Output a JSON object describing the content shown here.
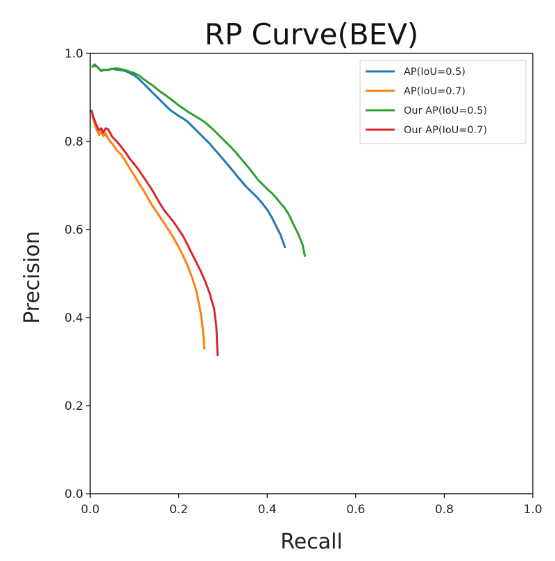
{
  "chart_data": {
    "type": "line",
    "title": "RP Curve(BEV)",
    "xlabel": "Recall",
    "ylabel": "Precision",
    "xlim": [
      0.0,
      1.0
    ],
    "ylim": [
      0.0,
      1.0
    ],
    "xticks": [
      "0.0",
      "0.2",
      "0.4",
      "0.6",
      "0.8",
      "1.0"
    ],
    "yticks": [
      "0.0",
      "0.2",
      "0.4",
      "0.6",
      "0.8",
      "1.0"
    ],
    "grid": false,
    "legend_position": "top-right",
    "series": [
      {
        "name": "AP(IoU=0.5)",
        "color": "#1f77b4",
        "points": [
          [
            0.005,
            0.97
          ],
          [
            0.01,
            0.972
          ],
          [
            0.015,
            0.97
          ],
          [
            0.02,
            0.965
          ],
          [
            0.025,
            0.96
          ],
          [
            0.03,
            0.963
          ],
          [
            0.04,
            0.962
          ],
          [
            0.05,
            0.965
          ],
          [
            0.06,
            0.963
          ],
          [
            0.07,
            0.962
          ],
          [
            0.08,
            0.96
          ],
          [
            0.09,
            0.955
          ],
          [
            0.1,
            0.95
          ],
          [
            0.11,
            0.942
          ],
          [
            0.12,
            0.932
          ],
          [
            0.13,
            0.922
          ],
          [
            0.14,
            0.912
          ],
          [
            0.15,
            0.902
          ],
          [
            0.16,
            0.892
          ],
          [
            0.17,
            0.882
          ],
          [
            0.18,
            0.872
          ],
          [
            0.19,
            0.865
          ],
          [
            0.2,
            0.858
          ],
          [
            0.21,
            0.852
          ],
          [
            0.22,
            0.845
          ],
          [
            0.23,
            0.835
          ],
          [
            0.24,
            0.825
          ],
          [
            0.25,
            0.815
          ],
          [
            0.26,
            0.805
          ],
          [
            0.27,
            0.795
          ],
          [
            0.28,
            0.783
          ],
          [
            0.29,
            0.772
          ],
          [
            0.3,
            0.76
          ],
          [
            0.31,
            0.748
          ],
          [
            0.32,
            0.736
          ],
          [
            0.33,
            0.724
          ],
          [
            0.34,
            0.712
          ],
          [
            0.35,
            0.7
          ],
          [
            0.36,
            0.69
          ],
          [
            0.37,
            0.68
          ],
          [
            0.38,
            0.67
          ],
          [
            0.39,
            0.658
          ],
          [
            0.4,
            0.645
          ],
          [
            0.41,
            0.628
          ],
          [
            0.42,
            0.608
          ],
          [
            0.43,
            0.588
          ],
          [
            0.44,
            0.56
          ]
        ]
      },
      {
        "name": "AP(IoU=0.7)",
        "color": "#ff7f0e",
        "points": [
          [
            0.003,
            0.87
          ],
          [
            0.006,
            0.855
          ],
          [
            0.01,
            0.84
          ],
          [
            0.015,
            0.825
          ],
          [
            0.02,
            0.815
          ],
          [
            0.025,
            0.822
          ],
          [
            0.03,
            0.812
          ],
          [
            0.035,
            0.818
          ],
          [
            0.04,
            0.808
          ],
          [
            0.045,
            0.8
          ],
          [
            0.05,
            0.795
          ],
          [
            0.06,
            0.78
          ],
          [
            0.07,
            0.77
          ],
          [
            0.08,
            0.755
          ],
          [
            0.09,
            0.738
          ],
          [
            0.1,
            0.722
          ],
          [
            0.11,
            0.705
          ],
          [
            0.12,
            0.69
          ],
          [
            0.13,
            0.672
          ],
          [
            0.14,
            0.655
          ],
          [
            0.15,
            0.64
          ],
          [
            0.16,
            0.625
          ],
          [
            0.17,
            0.61
          ],
          [
            0.18,
            0.595
          ],
          [
            0.19,
            0.578
          ],
          [
            0.2,
            0.56
          ],
          [
            0.21,
            0.54
          ],
          [
            0.22,
            0.518
          ],
          [
            0.23,
            0.492
          ],
          [
            0.24,
            0.46
          ],
          [
            0.25,
            0.41
          ],
          [
            0.255,
            0.37
          ],
          [
            0.258,
            0.33
          ]
        ]
      },
      {
        "name": "Our AP(IoU=0.5)",
        "color": "#2ca02c",
        "points": [
          [
            0.005,
            0.97
          ],
          [
            0.01,
            0.975
          ],
          [
            0.015,
            0.97
          ],
          [
            0.02,
            0.965
          ],
          [
            0.025,
            0.962
          ],
          [
            0.03,
            0.962
          ],
          [
            0.04,
            0.963
          ],
          [
            0.05,
            0.965
          ],
          [
            0.06,
            0.966
          ],
          [
            0.07,
            0.964
          ],
          [
            0.08,
            0.962
          ],
          [
            0.09,
            0.958
          ],
          [
            0.1,
            0.955
          ],
          [
            0.11,
            0.95
          ],
          [
            0.12,
            0.942
          ],
          [
            0.13,
            0.935
          ],
          [
            0.14,
            0.928
          ],
          [
            0.15,
            0.92
          ],
          [
            0.16,
            0.912
          ],
          [
            0.17,
            0.905
          ],
          [
            0.18,
            0.898
          ],
          [
            0.19,
            0.89
          ],
          [
            0.2,
            0.882
          ],
          [
            0.21,
            0.875
          ],
          [
            0.22,
            0.868
          ],
          [
            0.23,
            0.862
          ],
          [
            0.24,
            0.856
          ],
          [
            0.25,
            0.85
          ],
          [
            0.26,
            0.843
          ],
          [
            0.27,
            0.834
          ],
          [
            0.28,
            0.825
          ],
          [
            0.29,
            0.815
          ],
          [
            0.3,
            0.805
          ],
          [
            0.31,
            0.795
          ],
          [
            0.32,
            0.785
          ],
          [
            0.33,
            0.774
          ],
          [
            0.34,
            0.762
          ],
          [
            0.35,
            0.75
          ],
          [
            0.36,
            0.738
          ],
          [
            0.37,
            0.725
          ],
          [
            0.38,
            0.712
          ],
          [
            0.39,
            0.702
          ],
          [
            0.4,
            0.692
          ],
          [
            0.41,
            0.683
          ],
          [
            0.42,
            0.672
          ],
          [
            0.43,
            0.66
          ],
          [
            0.44,
            0.648
          ],
          [
            0.45,
            0.632
          ],
          [
            0.46,
            0.61
          ],
          [
            0.47,
            0.59
          ],
          [
            0.48,
            0.565
          ],
          [
            0.485,
            0.54
          ]
        ]
      },
      {
        "name": "Our AP(IoU=0.7)",
        "color": "#d62728",
        "points": [
          [
            0.003,
            0.87
          ],
          [
            0.006,
            0.86
          ],
          [
            0.01,
            0.848
          ],
          [
            0.015,
            0.835
          ],
          [
            0.02,
            0.825
          ],
          [
            0.025,
            0.83
          ],
          [
            0.03,
            0.82
          ],
          [
            0.035,
            0.83
          ],
          [
            0.04,
            0.828
          ],
          [
            0.045,
            0.82
          ],
          [
            0.05,
            0.81
          ],
          [
            0.06,
            0.8
          ],
          [
            0.07,
            0.788
          ],
          [
            0.08,
            0.775
          ],
          [
            0.09,
            0.76
          ],
          [
            0.1,
            0.748
          ],
          [
            0.11,
            0.735
          ],
          [
            0.12,
            0.72
          ],
          [
            0.13,
            0.705
          ],
          [
            0.14,
            0.69
          ],
          [
            0.15,
            0.672
          ],
          [
            0.16,
            0.655
          ],
          [
            0.17,
            0.64
          ],
          [
            0.18,
            0.628
          ],
          [
            0.19,
            0.615
          ],
          [
            0.2,
            0.6
          ],
          [
            0.21,
            0.585
          ],
          [
            0.22,
            0.565
          ],
          [
            0.23,
            0.545
          ],
          [
            0.24,
            0.525
          ],
          [
            0.25,
            0.505
          ],
          [
            0.26,
            0.482
          ],
          [
            0.27,
            0.455
          ],
          [
            0.28,
            0.42
          ],
          [
            0.285,
            0.38
          ],
          [
            0.288,
            0.315
          ]
        ]
      }
    ]
  }
}
